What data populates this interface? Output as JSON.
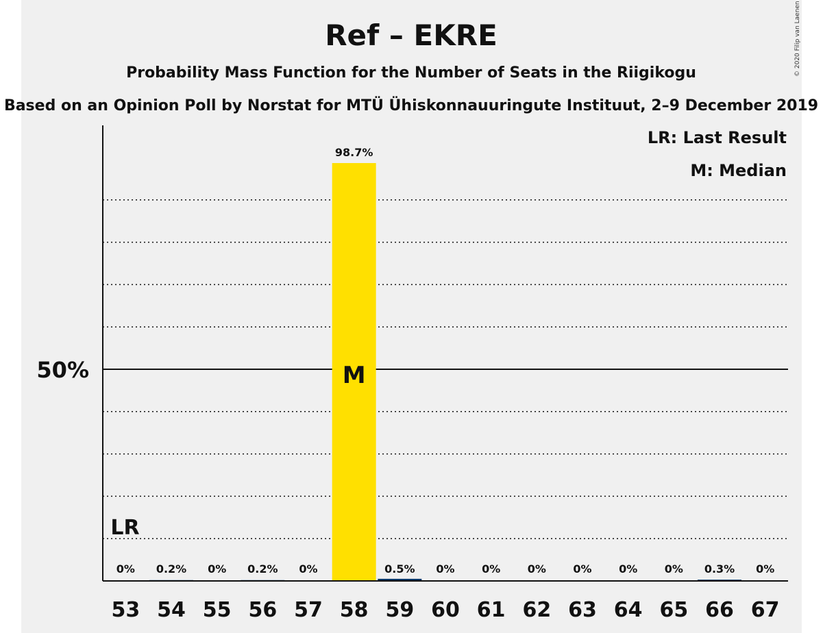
{
  "chart_data": {
    "type": "bar",
    "title": "Ref – EKRE",
    "subtitle": "Probability Mass Function for the Number of Seats in the Riigikogu",
    "subtitle2": "Based on an Opinion Poll by Norstat for MTÜ Ühiskonnauuringute Instituut, 2–9 December 2019",
    "copyright": "© 2020 Filip van Laenen",
    "categories": [
      "53",
      "54",
      "55",
      "56",
      "57",
      "58",
      "59",
      "60",
      "61",
      "62",
      "63",
      "64",
      "65",
      "66",
      "67"
    ],
    "values": [
      0,
      0.2,
      0,
      0.2,
      0,
      98.7,
      0.5,
      0,
      0,
      0,
      0,
      0,
      0,
      0.3,
      0
    ],
    "value_labels": [
      "0%",
      "0.2%",
      "0%",
      "0.2%",
      "0%",
      "98.7%",
      "0.5%",
      "0%",
      "0%",
      "0%",
      "0%",
      "0%",
      "0%",
      "0.3%",
      "0%"
    ],
    "ylim": [
      0,
      100
    ],
    "y_tick_label": "50%",
    "y_tick_value": 50,
    "last_result_category": "53",
    "last_result_marker": "LR",
    "median_category": "58",
    "median_marker": "M",
    "legend": [
      "LR: Last Result",
      "M: Median"
    ],
    "legend_position": "top-right",
    "colors": {
      "highlight": "#ffe000",
      "other": "#003366",
      "median_text": "#ffffff"
    }
  }
}
